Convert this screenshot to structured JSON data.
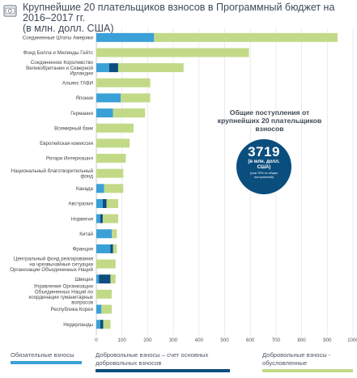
{
  "title": {
    "line1": "Крупнейшие 20 плательщиков взносов в Программный бюджет на 2016–2017 гг.",
    "line2": "(в млн. долл. США)"
  },
  "icon": "money-icon",
  "colors": {
    "assessed": "#3aa0d8",
    "core_voluntary": "#0c4e7f",
    "specified_voluntary": "#c2da87",
    "grid": "#dedede"
  },
  "callout": {
    "title": "Общие поступления от крупнейших 20 плательщиков взносов",
    "value": "3719",
    "unit": "(в млн. долл. США)",
    "note": "(или 79% от общих поступлений)"
  },
  "legend": [
    {
      "label": "Обязательные взносы",
      "color": "#3aa0d8"
    },
    {
      "label": "Добровольные взносы – счет основных добровольных взносов",
      "color": "#0c4e7f"
    },
    {
      "label": "Добровольные взносы - обусловленные",
      "color": "#c2da87"
    }
  ],
  "chart_data": {
    "type": "bar",
    "orientation": "horizontal",
    "stacked": true,
    "xlim": [
      0,
      1000
    ],
    "xticks": [
      0,
      100,
      200,
      300,
      400,
      500,
      600,
      700,
      800,
      900,
      1000
    ],
    "grid": true,
    "categories": [
      "Соединенные Штаты Америки",
      "Фонд Билла и Мелинды Гейтс",
      "Соединенное Королевство Великобритании и Северной Ирландии",
      "Альянс ГАВИ",
      "Япония",
      "Германия",
      "Всемирный банк",
      "Европейская комиссия",
      "Ротари Интернэшнл",
      "Национальный благотворительный фонд",
      "Канада",
      "Австралия",
      "Норвегия",
      "Китай",
      "Франция",
      "Центральный фонд реагирования на чрезвычайные ситуации Организации Объединенных Наций",
      "Швеция",
      "Управление Организации Объединенных Наций по координации гуманитарных вопросов",
      "Республика Корея",
      "Нидерланды"
    ],
    "series": [
      {
        "name": "Обязательные взносы",
        "values": [
          225,
          0,
          50,
          0,
          95,
          65,
          0,
          0,
          0,
          0,
          30,
          25,
          15,
          60,
          55,
          0,
          10,
          0,
          20,
          15
        ]
      },
      {
        "name": "Добровольные взносы – счет основных добровольных взносов",
        "values": [
          0,
          0,
          35,
          0,
          0,
          0,
          0,
          0,
          0,
          0,
          0,
          15,
          10,
          0,
          10,
          0,
          45,
          0,
          0,
          12
        ]
      },
      {
        "name": "Добровольные взносы - обусловленные",
        "values": [
          715,
          595,
          255,
          210,
          115,
          125,
          145,
          130,
          115,
          105,
          75,
          45,
          60,
          20,
          15,
          75,
          20,
          60,
          40,
          28
        ]
      }
    ]
  }
}
